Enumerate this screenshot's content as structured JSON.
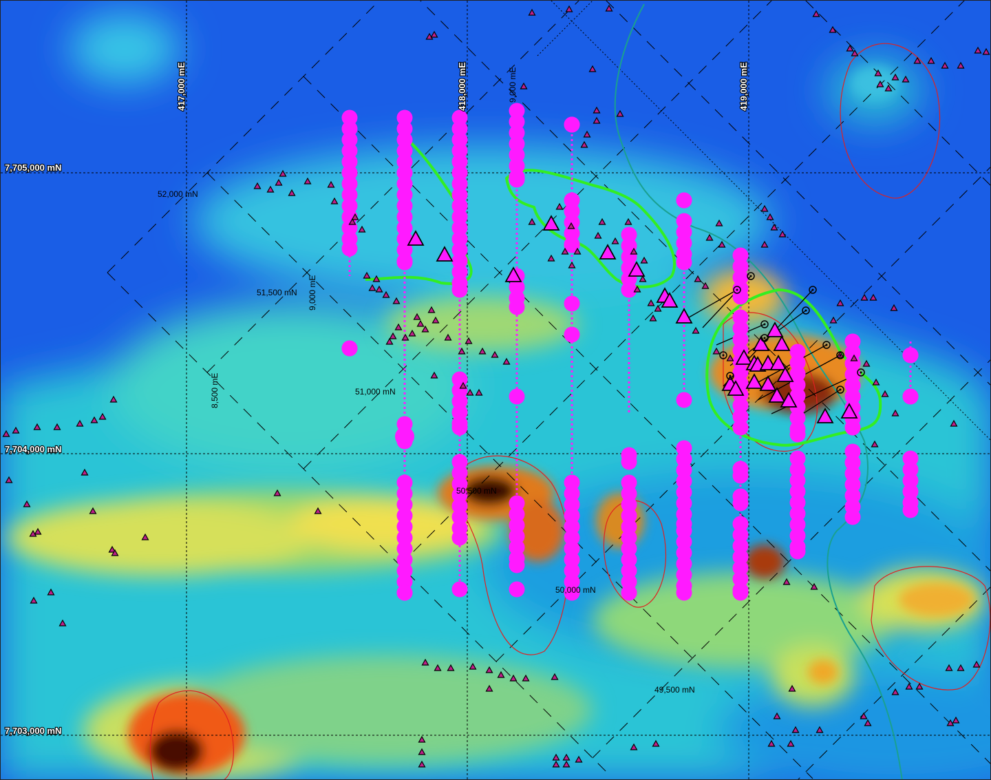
{
  "map": {
    "northing_labels": [
      "7,705,000 mN",
      "7,704,000 mN",
      "7,703,000 mN"
    ],
    "easting_labels": [
      "417,000 mE",
      "418,000 mE",
      "419,000 mE"
    ],
    "local_grid_labels": [
      "52,000 mN",
      "51,500 mN",
      "51,000 mN",
      "50,500 mN",
      "50,000 mN",
      "49,500 mN",
      "9,000 mE",
      "8,500 mE",
      "9,000 mE"
    ],
    "colors": {
      "background_low": "#1560e0",
      "magnetic_high": "#ff3a00",
      "anomaly_outline": "#e02020",
      "target_outline": "#33ee22",
      "drillhole": "#ff1aff",
      "sample_triangle": "#c0208a",
      "creek": "#1aa090"
    },
    "legend_icons": [
      "drillhole-collar-icon",
      "sample-point-icon",
      "rock-chip-icon"
    ]
  }
}
